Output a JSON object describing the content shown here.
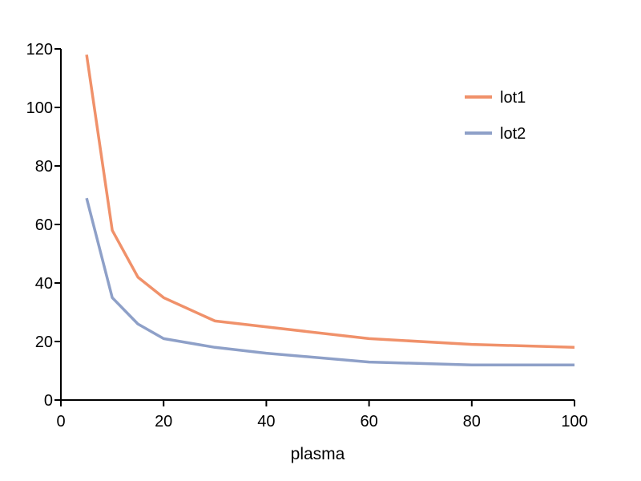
{
  "chart_data": {
    "type": "line",
    "title": "",
    "xlabel": "plasma",
    "ylabel": "",
    "xlim": [
      0,
      100
    ],
    "ylim": [
      0,
      120
    ],
    "xticks": [
      0,
      20,
      40,
      60,
      80,
      100
    ],
    "yticks": [
      0,
      20,
      40,
      60,
      80,
      100,
      120
    ],
    "grid": false,
    "legend_position": "top-right",
    "x": [
      5,
      10,
      15,
      20,
      30,
      40,
      60,
      80,
      100
    ],
    "series": [
      {
        "name": "lot1",
        "color": "#f0916a",
        "values": [
          118,
          58,
          42,
          35,
          27,
          25,
          21,
          19,
          18
        ]
      },
      {
        "name": "lot2",
        "color": "#8ea0c8",
        "values": [
          69,
          35,
          26,
          21,
          18,
          16,
          13,
          12,
          12
        ]
      }
    ]
  }
}
